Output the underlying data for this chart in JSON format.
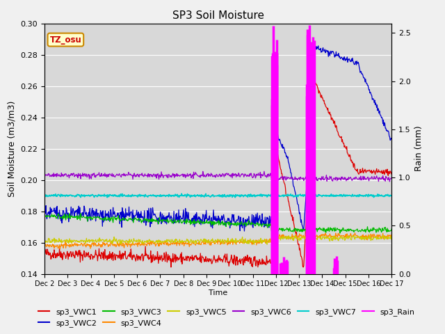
{
  "title": "SP3 Soil Moisture",
  "ylabel_left": "Soil Moisture (m3/m3)",
  "ylabel_right": "Rain (mm)",
  "xlabel": "Time",
  "x_tick_labels": [
    "Dec 2",
    "Dec 3",
    "Dec 4",
    "Dec 5",
    "Dec 6",
    "Dec 7",
    "Dec 8",
    "Dec 9",
    "Dec 10",
    "Dec 11",
    "Dec 12",
    "Dec 13",
    "Dec 14",
    "Dec 15",
    "Dec 16",
    "Dec 17"
  ],
  "ylim_left": [
    0.14,
    0.3
  ],
  "ylim_right": [
    0.0,
    2.6
  ],
  "plot_bg_color": "#d8d8d8",
  "fig_bg_color": "#f0f0f0",
  "watermark": "TZ_osu",
  "colors": {
    "vwc1": "#dd0000",
    "vwc2": "#0000cc",
    "vwc3": "#00bb00",
    "vwc4": "#ff8800",
    "vwc5": "#cccc00",
    "vwc6": "#9900cc",
    "vwc7": "#00cccc",
    "rain": "#ff00ff"
  }
}
